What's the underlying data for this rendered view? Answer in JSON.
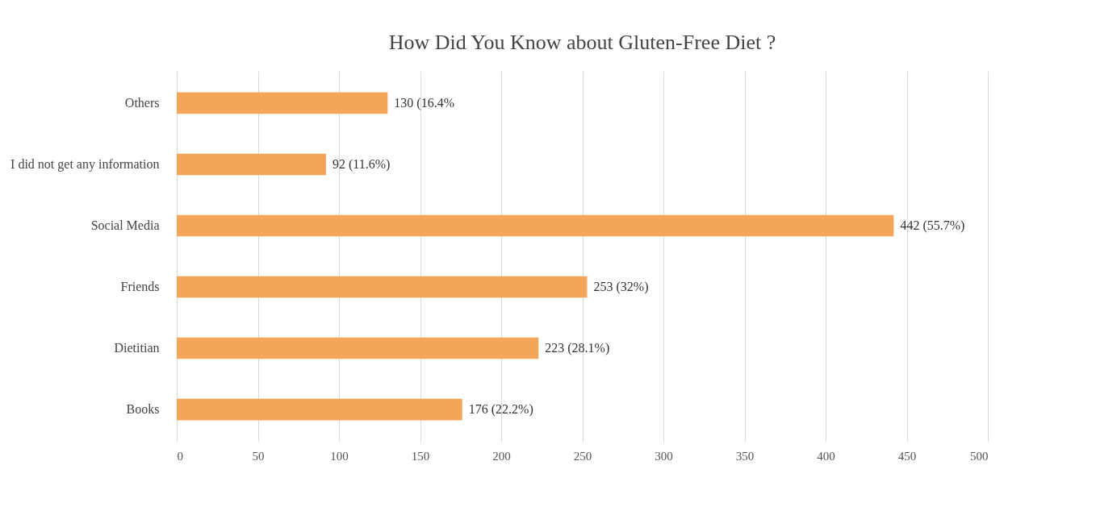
{
  "chart_data": {
    "type": "bar",
    "orientation": "horizontal",
    "title": "How Did You Know about Gluten-Free Diet ?",
    "categories": [
      "Others",
      "I did not get any information",
      "Social Media",
      "Friends",
      "Dietitian",
      "Books"
    ],
    "values": [
      130,
      92,
      442,
      253,
      223,
      176
    ],
    "value_labels": [
      "130 (16.4%",
      "92 (11.6%)",
      "442 (55.7%)",
      "253 (32%)",
      "223 (28.1%)",
      "176 (22.2%)"
    ],
    "color": "#f5a55a",
    "xlim": [
      0,
      500
    ],
    "xticks": [
      0,
      50,
      100,
      150,
      200,
      250,
      300,
      350,
      400,
      450,
      500
    ],
    "grid": "x"
  }
}
